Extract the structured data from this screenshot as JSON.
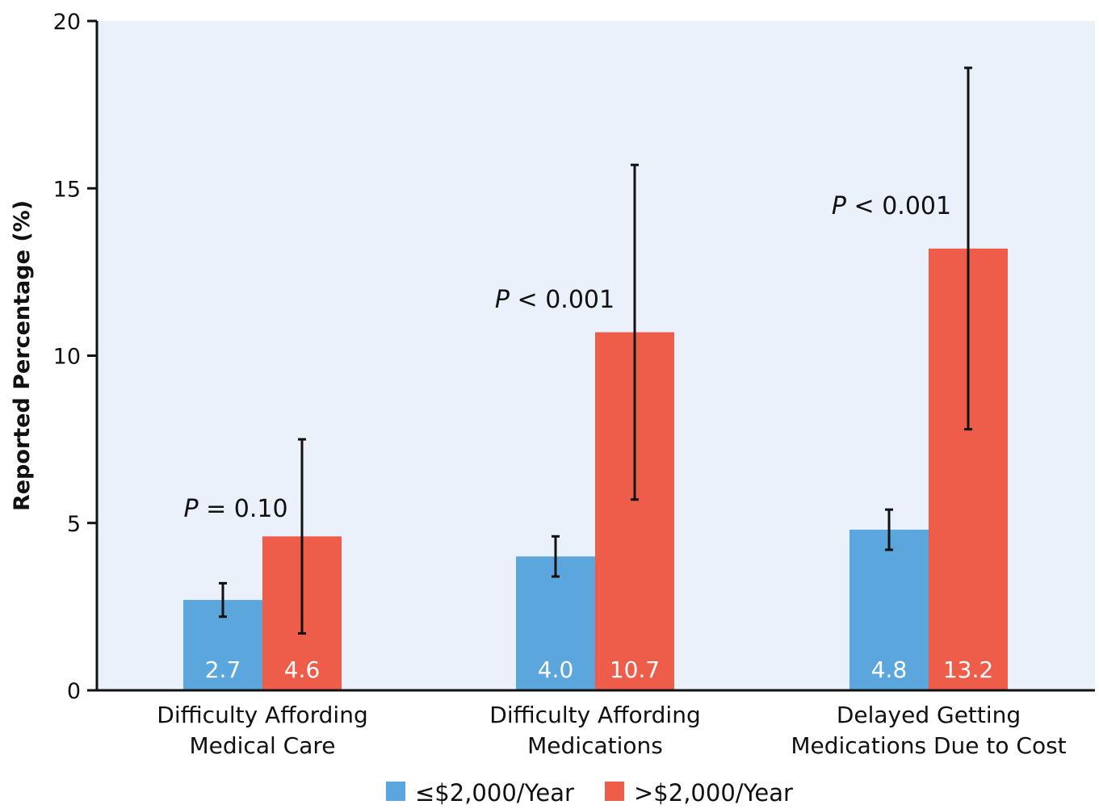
{
  "chart_data": {
    "type": "bar",
    "ylabel": "Reported Percentage (%)",
    "ylim": [
      0,
      20
    ],
    "yticks": [
      0,
      5,
      10,
      15,
      20
    ],
    "grid": false,
    "legend_position": "bottom",
    "categories": [
      [
        "Difficulty Affording",
        "Medical Care"
      ],
      [
        "Difficulty Affording",
        "Medications"
      ],
      [
        "Delayed Getting",
        "Medications Due to Cost"
      ]
    ],
    "series": [
      {
        "name": "≤$2,000/Year",
        "color": "#5ba6dc",
        "values": [
          2.7,
          4.0,
          4.8
        ],
        "value_labels": [
          "2.7",
          "4.0",
          "4.8"
        ],
        "error_low": [
          2.2,
          3.4,
          4.2
        ],
        "error_high": [
          3.2,
          4.6,
          5.4
        ]
      },
      {
        "name": ">$2,000/Year",
        "color": "#ee5d4a",
        "values": [
          4.6,
          10.7,
          13.2
        ],
        "value_labels": [
          "4.6",
          "10.7",
          "13.2"
        ],
        "error_low": [
          1.7,
          5.7,
          7.8
        ],
        "error_high": [
          7.5,
          15.7,
          18.6
        ]
      }
    ],
    "annotations": [
      {
        "category": 0,
        "p_symbol": "P",
        "rest": " = 0.10"
      },
      {
        "category": 1,
        "p_symbol": "P",
        "rest": " < 0.001"
      },
      {
        "category": 2,
        "p_symbol": "P",
        "rest": " < 0.001"
      }
    ],
    "plot_background": "#eaf1fa"
  }
}
